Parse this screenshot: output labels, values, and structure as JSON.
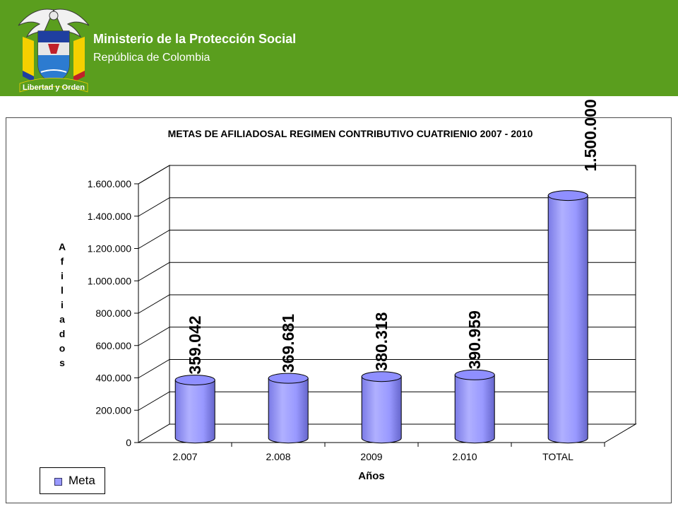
{
  "header": {
    "ministry": "Ministerio de la Protección Social",
    "country": "República de Colombia",
    "emblem_motto": "Libertad y Orden",
    "brand_color": "#5a9e1e"
  },
  "chart_data": {
    "type": "bar",
    "title": "METAS DE AFILIADOSAL REGIMEN CONTRIBUTIVO  CUATRIENIO 2007 - 2010",
    "xlabel": "Años",
    "ylabel": "Afiliados",
    "categories": [
      "2.007",
      "2.008",
      "2009",
      "2.010",
      "TOTAL"
    ],
    "series": [
      {
        "name": "Meta",
        "values": [
          359042,
          369681,
          380318,
          390959,
          1500000
        ],
        "labels": [
          "359.042",
          "369.681",
          "380.318",
          "390.959",
          "1.500.000"
        ],
        "color": "#9999ff"
      }
    ],
    "ylim": [
      0,
      1600000
    ],
    "yticks": [
      0,
      200000,
      400000,
      600000,
      800000,
      1000000,
      1200000,
      1400000,
      1600000
    ],
    "ytick_labels": [
      "0",
      "200.000",
      "400.000",
      "600.000",
      "800.000",
      "1.000.000",
      "1.200.000",
      "1.400.000",
      "1.600.000"
    ],
    "grid": true,
    "style": "3d-cylinder",
    "legend": "bottom-left"
  }
}
